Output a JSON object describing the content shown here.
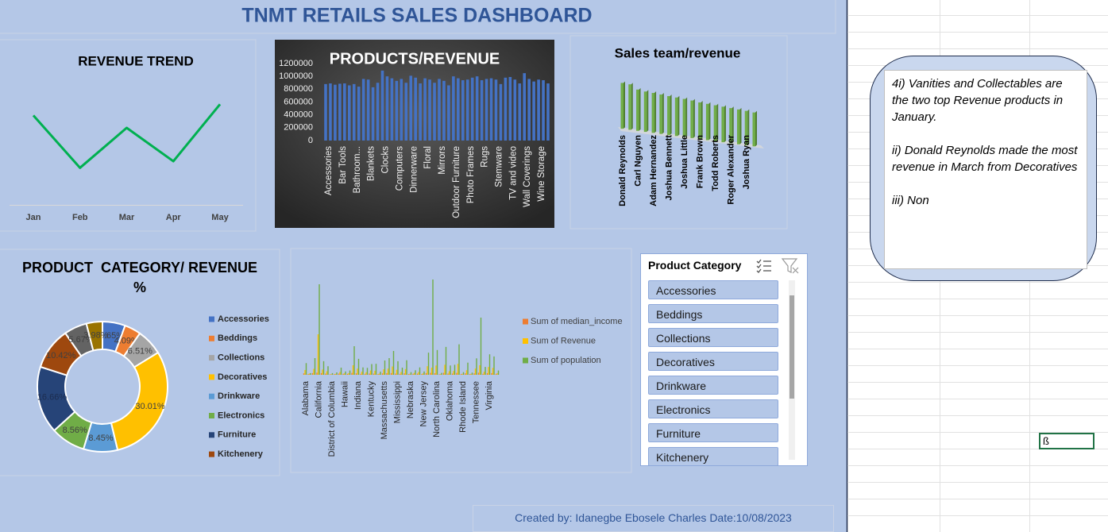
{
  "title": "TNMT RETAILS SALES DASHBOARD",
  "chart_data": [
    {
      "type": "line",
      "title": "REVENUE TREND",
      "categories": [
        "Jan",
        "Feb",
        "Mar",
        "Apr",
        "May"
      ],
      "values": [
        8890000,
        8090000,
        8700000,
        8190000,
        9060000
      ],
      "ylim": [
        7500000,
        9500000
      ],
      "color": "#00b050"
    },
    {
      "type": "bar",
      "title": "PRODUCTS/REVENUE",
      "categories": [
        "Accessories",
        null,
        null,
        "Bar Tools",
        null,
        null,
        "Bathroom...",
        null,
        null,
        "Blankets",
        null,
        null,
        "Clocks",
        null,
        null,
        "Computers",
        null,
        null,
        "Dinnerware",
        null,
        null,
        "Floral",
        null,
        null,
        "Mirrors",
        null,
        null,
        "Outdoor Furniture",
        null,
        null,
        "Photo Frames",
        null,
        null,
        "Rugs",
        null,
        null,
        "Stemware",
        null,
        null,
        "TV and video",
        null,
        null,
        "Wall Coverings",
        null,
        null,
        "Wine Storage",
        null,
        null
      ],
      "values": [
        880000,
        890000,
        870000,
        885000,
        890000,
        860000,
        880000,
        840000,
        960000,
        950000,
        830000,
        900000,
        1090000,
        1000000,
        970000,
        930000,
        960000,
        900000,
        1010000,
        980000,
        890000,
        970000,
        950000,
        900000,
        960000,
        930000,
        860000,
        1000000,
        970000,
        940000,
        950000,
        980000,
        1000000,
        940000,
        960000,
        970000,
        950000,
        880000,
        980000,
        990000,
        950000,
        890000,
        1050000,
        960000,
        920000,
        950000,
        940000,
        890000
      ],
      "ylim": [
        0,
        1200000
      ],
      "yticks": [
        0,
        200000,
        400000,
        600000,
        800000,
        1000000,
        1200000
      ],
      "grid": false,
      "color": "#4472c4"
    },
    {
      "type": "bar3d",
      "title": "Sales team/revenue",
      "categories": [
        "Donald Reynolds",
        null,
        "Carl Nguyen",
        null,
        "Adam Hernandez",
        null,
        "Joshua Bennett",
        null,
        "Joshua Little",
        null,
        "Frank Brown",
        null,
        "Todd Roberts",
        null,
        "Roger Alexander",
        null,
        "Joshua Ryan",
        null
      ],
      "values": [
        2500000,
        2480000,
        2250000,
        2200000,
        2180000,
        2150000,
        2120000,
        2100000,
        2080000,
        2050000,
        2000000,
        1980000,
        1960000,
        1940000,
        1920000,
        1900000,
        1880000,
        1850000
      ],
      "ylim": [
        0,
        2600000
      ],
      "color": "#70ad47"
    },
    {
      "type": "donut",
      "title": "PRODUCT  CATEGORY/ REVENUE %",
      "categories": [
        "Accessories",
        "Beddings",
        "Collections",
        "Decoratives",
        "Drinkware",
        "Electronics",
        "Furniture",
        "Kitchenery",
        null,
        null
      ],
      "values": [
        5.65,
        4.09,
        6.51,
        30.01,
        8.45,
        8.56,
        16.66,
        10.42,
        5.67,
        3.98
      ],
      "value_labels": [
        "5.65%",
        "4.09%",
        "6.51%",
        "30.01%",
        "8.45%",
        "8.56%",
        "16.66%",
        "10.42%",
        "5.67%",
        "3.98%"
      ],
      "colors": [
        "#4472c4",
        "#ed7d31",
        "#a5a5a5",
        "#ffc000",
        "#5b9bd5",
        "#70ad47",
        "#264478",
        "#9e480e",
        "#636363",
        "#997300"
      ],
      "legend": "right"
    },
    {
      "type": "bar",
      "categories": [
        "Alabama",
        null,
        null,
        "California",
        null,
        null,
        "District of Columbia",
        null,
        null,
        "Hawaii",
        null,
        null,
        "Indiana",
        null,
        null,
        "Kentucky",
        null,
        null,
        "Massachusetts",
        null,
        null,
        "Mississippi",
        null,
        null,
        "Nebraska",
        null,
        null,
        "New Jersey",
        null,
        null,
        "North Carolina",
        null,
        null,
        "Oklahoma",
        null,
        null,
        "Rhode Island",
        null,
        null,
        "Tennessee",
        null,
        null,
        "Virginia",
        null,
        null
      ],
      "series": [
        {
          "name": "Sum of median_income",
          "color": "#ed7d31",
          "values": [
            600000,
            300000,
            700000,
            900000,
            700000,
            500000,
            200000,
            300000,
            500000,
            400000,
            400000,
            800000,
            600000,
            400000,
            400000,
            500000,
            500000,
            300000,
            600000,
            700000,
            700000,
            500000,
            400000,
            600000,
            300000,
            400000,
            500000,
            300000,
            700000,
            800000,
            700000,
            200000,
            800000,
            500000,
            500000,
            800000,
            300000,
            600000,
            300000,
            600000,
            900000,
            400000,
            700000,
            700000,
            400000
          ]
        },
        {
          "name": "Sum of Revenue",
          "color": "#ffc000",
          "values": [
            2000000,
            500000,
            2500000,
            17000000,
            2200000,
            1500000,
            300000,
            400000,
            1200000,
            600000,
            700000,
            4000000,
            2600000,
            1300000,
            1100000,
            1800000,
            1700000,
            500000,
            2300000,
            2600000,
            3500000,
            2100000,
            1200000,
            2400000,
            400000,
            800000,
            1200000,
            600000,
            3600000,
            3000000,
            3900000,
            300000,
            4200000,
            1500000,
            1600000,
            4600000,
            400000,
            1900000,
            400000,
            2600000,
            4000000,
            1300000,
            3300000,
            2900000,
            700000
          ]
        },
        {
          "name": "Sum of population",
          "color": "#70ad47",
          "values": [
            4900000,
            700000,
            7000000,
            38000000,
            5700000,
            3600000,
            700000,
            1000000,
            3000000,
            1400000,
            1800000,
            12000000,
            6700000,
            3100000,
            2900000,
            4500000,
            4600000,
            1300000,
            6000000,
            7000000,
            10000000,
            5700000,
            3000000,
            6100000,
            1100000,
            1900000,
            3100000,
            1400000,
            9300000,
            40000000,
            10400000,
            800000,
            11700000,
            3900000,
            4200000,
            12800000,
            1100000,
            5100000,
            900000,
            6900000,
            24000000,
            3300000,
            8600000,
            7700000,
            1800000
          ]
        }
      ],
      "ylim": [
        0,
        40000000
      ],
      "legend": "right"
    }
  ],
  "slicer": {
    "title": "Product Category",
    "items": [
      "Accessories",
      "Beddings",
      "Collections",
      "Decoratives",
      "Drinkware",
      "Electronics",
      "Furniture",
      "Kitchenery"
    ]
  },
  "notes": [
    "4i) Vanities and Collectables are the two top Revenue products in January.",
    "ii) Donald Reynolds made the most revenue in March from Decoratives",
    "iii) Non"
  ],
  "footer": "Created by: Idanegbe Ebosele Charles  Date:10/08/2023",
  "cell": "ß"
}
